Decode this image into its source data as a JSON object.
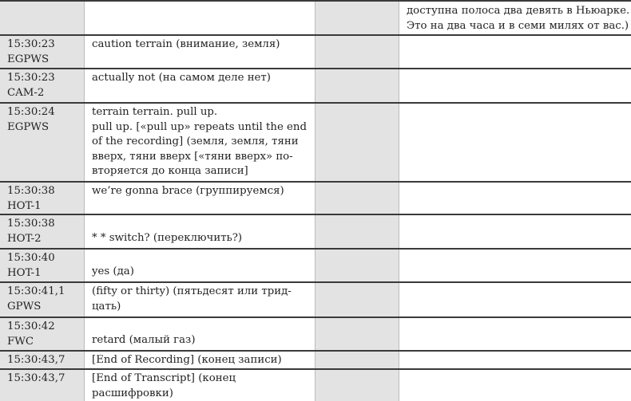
{
  "header_row": {
    "col4_text": "доступна полоса два девять в Ньюарке. Это на два часа и в семи милях от вас.)"
  },
  "rows": [
    {
      "time": "15:30:23",
      "speaker": "EGPWS",
      "text": "caution terrain (внимание, земля)"
    },
    {
      "time": "15:30:23",
      "speaker": "CAM-2",
      "text": "actually not (на самом деле нет)"
    },
    {
      "time": "15:30:24",
      "speaker": "EGPWS",
      "text": "terrain terrain. pull up.\npull up. [«pull up» repeats until the end of the recording] (земля, земля, тяни вверх, тяни вверх [«тяни вверх» по-вторяется до конца записи]"
    },
    {
      "time": "15:30:38",
      "speaker": "HOT-1",
      "text": "we’re gonna brace (группируемся)"
    },
    {
      "time": "15:30:38",
      "speaker": "HOT-2",
      "text": "* * switch? (переключить?)"
    },
    {
      "time": "15:30:40",
      "speaker": "HOT-1",
      "text": "yes (да)"
    },
    {
      "time": "15:30:41,1",
      "speaker": "GPWS",
      "text": "(fifty or thirty) (пятьдесят или трид-цать)"
    },
    {
      "time": "15:30:42",
      "speaker": "FWC",
      "text": "retard (малый газ)"
    },
    {
      "time": "15:30:43,7",
      "speaker": "",
      "text": "[End of Recording] (конец записи)"
    },
    {
      "time": "15:30:43,7",
      "speaker": "",
      "text": "[End of Transcript] (конец расшифровки)"
    }
  ]
}
